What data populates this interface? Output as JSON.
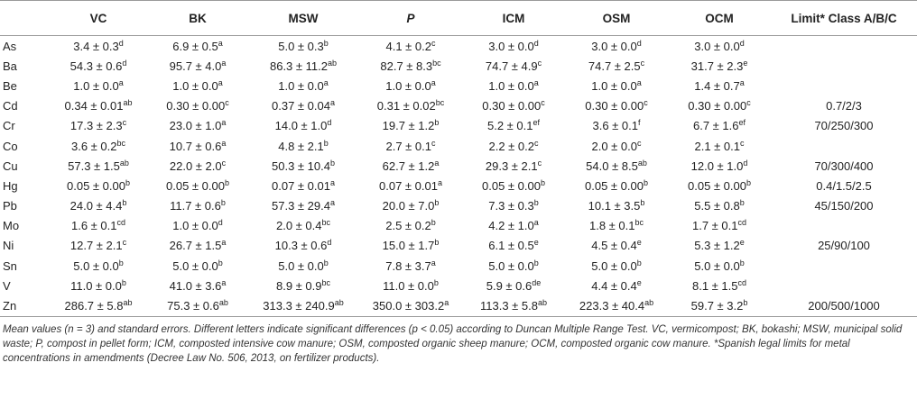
{
  "headers": [
    {
      "label": "",
      "italic": false
    },
    {
      "label": "VC",
      "italic": false
    },
    {
      "label": "BK",
      "italic": false
    },
    {
      "label": "MSW",
      "italic": false
    },
    {
      "label": "P",
      "italic": true
    },
    {
      "label": "ICM",
      "italic": false
    },
    {
      "label": "OSM",
      "italic": false
    },
    {
      "label": "OCM",
      "italic": false
    },
    {
      "label": "Limit* Class A/B/C",
      "italic": false
    }
  ],
  "rows": [
    {
      "el": "As",
      "cells": [
        [
          "3.4 ± 0.3",
          "d"
        ],
        [
          "6.9 ± 0.5",
          "a"
        ],
        [
          "5.0 ± 0.3",
          "b"
        ],
        [
          "4.1 ± 0.2",
          "c"
        ],
        [
          "3.0 ± 0.0",
          "d"
        ],
        [
          "3.0 ± 0.0",
          "d"
        ],
        [
          "3.0 ± 0.0",
          "d"
        ]
      ],
      "limit": ""
    },
    {
      "el": "Ba",
      "cells": [
        [
          "54.3 ± 0.6",
          "d"
        ],
        [
          "95.7 ± 4.0",
          "a"
        ],
        [
          "86.3 ± 11.2",
          "ab"
        ],
        [
          "82.7 ± 8.3",
          "bc"
        ],
        [
          "74.7 ± 4.9",
          "c"
        ],
        [
          "74.7 ± 2.5",
          "c"
        ],
        [
          "31.7 ± 2.3",
          "e"
        ]
      ],
      "limit": ""
    },
    {
      "el": "Be",
      "cells": [
        [
          "1.0 ± 0.0",
          "a"
        ],
        [
          "1.0 ± 0.0",
          "a"
        ],
        [
          "1.0 ± 0.0",
          "a"
        ],
        [
          "1.0 ± 0.0",
          "a"
        ],
        [
          "1.0 ± 0.0",
          "a"
        ],
        [
          "1.0 ± 0.0",
          "a"
        ],
        [
          "1.4 ± 0.7",
          "a"
        ]
      ],
      "limit": ""
    },
    {
      "el": "Cd",
      "cells": [
        [
          "0.34 ± 0.01",
          "ab"
        ],
        [
          "0.30 ± 0.00",
          "c"
        ],
        [
          "0.37 ± 0.04",
          "a"
        ],
        [
          "0.31 ± 0.02",
          "bc"
        ],
        [
          "0.30 ± 0.00",
          "c"
        ],
        [
          "0.30 ± 0.00",
          "c"
        ],
        [
          "0.30 ± 0.00",
          "c"
        ]
      ],
      "limit": "0.7/2/3"
    },
    {
      "el": "Cr",
      "cells": [
        [
          "17.3 ± 2.3",
          "c"
        ],
        [
          "23.0 ± 1.0",
          "a"
        ],
        [
          "14.0 ± 1.0",
          "d"
        ],
        [
          "19.7 ± 1.2",
          "b"
        ],
        [
          "5.2 ± 0.1",
          "ef"
        ],
        [
          "3.6 ± 0.1",
          "f"
        ],
        [
          "6.7 ± 1.6",
          "ef"
        ]
      ],
      "limit": "70/250/300"
    },
    {
      "el": "Co",
      "cells": [
        [
          "3.6 ± 0.2",
          "bc"
        ],
        [
          "10.7 ± 0.6",
          "a"
        ],
        [
          "4.8 ± 2.1",
          "b"
        ],
        [
          "2.7 ± 0.1",
          "c"
        ],
        [
          "2.2 ± 0.2",
          "c"
        ],
        [
          "2.0 ± 0.0",
          "c"
        ],
        [
          "2.1 ± 0.1",
          "c"
        ]
      ],
      "limit": ""
    },
    {
      "el": "Cu",
      "cells": [
        [
          "57.3 ± 1.5",
          "ab"
        ],
        [
          "22.0 ± 2.0",
          "c"
        ],
        [
          "50.3 ± 10.4",
          "b"
        ],
        [
          "62.7 ± 1.2",
          "a"
        ],
        [
          "29.3 ± 2.1",
          "c"
        ],
        [
          "54.0 ± 8.5",
          "ab"
        ],
        [
          "12.0 ± 1.0",
          "d"
        ]
      ],
      "limit": "70/300/400"
    },
    {
      "el": "Hg",
      "cells": [
        [
          "0.05 ± 0.00",
          "b"
        ],
        [
          "0.05 ± 0.00",
          "b"
        ],
        [
          "0.07 ± 0.01",
          "a"
        ],
        [
          "0.07 ± 0.01",
          "a"
        ],
        [
          "0.05 ± 0.00",
          "b"
        ],
        [
          "0.05 ± 0.00",
          "b"
        ],
        [
          "0.05 ± 0.00",
          "b"
        ]
      ],
      "limit": "0.4/1.5/2.5"
    },
    {
      "el": "Pb",
      "cells": [
        [
          "24.0 ± 4.4",
          "b"
        ],
        [
          "11.7 ± 0.6",
          "b"
        ],
        [
          "57.3 ± 29.4",
          "a"
        ],
        [
          "20.0 ± 7.0",
          "b"
        ],
        [
          "7.3 ± 0.3",
          "b"
        ],
        [
          "10.1 ± 3.5",
          "b"
        ],
        [
          "5.5 ± 0.8",
          "b"
        ]
      ],
      "limit": "45/150/200"
    },
    {
      "el": "Mo",
      "cells": [
        [
          "1.6 ± 0.1",
          "cd"
        ],
        [
          "1.0 ± 0.0",
          "d"
        ],
        [
          "2.0 ± 0.4",
          "bc"
        ],
        [
          "2.5 ± 0.2",
          "b"
        ],
        [
          "4.2 ± 1.0",
          "a"
        ],
        [
          "1.8 ± 0.1",
          "bc"
        ],
        [
          "1.7 ± 0.1",
          "cd"
        ]
      ],
      "limit": ""
    },
    {
      "el": "Ni",
      "cells": [
        [
          "12.7 ± 2.1",
          "c"
        ],
        [
          "26.7 ± 1.5",
          "a"
        ],
        [
          "10.3 ± 0.6",
          "d"
        ],
        [
          "15.0 ± 1.7",
          "b"
        ],
        [
          "6.1 ± 0.5",
          "e"
        ],
        [
          "4.5 ± 0.4",
          "e"
        ],
        [
          "5.3 ± 1.2",
          "e"
        ]
      ],
      "limit": "25/90/100"
    },
    {
      "el": "Sn",
      "cells": [
        [
          "5.0 ± 0.0",
          "b"
        ],
        [
          "5.0 ± 0.0",
          "b"
        ],
        [
          "5.0 ± 0.0",
          "b"
        ],
        [
          "7.8 ± 3.7",
          "a"
        ],
        [
          "5.0 ± 0.0",
          "b"
        ],
        [
          "5.0 ± 0.0",
          "b"
        ],
        [
          "5.0 ± 0.0",
          "b"
        ]
      ],
      "limit": ""
    },
    {
      "el": "V",
      "cells": [
        [
          "11.0 ± 0.0",
          "b"
        ],
        [
          "41.0 ± 3.6",
          "a"
        ],
        [
          "8.9 ± 0.9",
          "bc"
        ],
        [
          "11.0 ± 0.0",
          "b"
        ],
        [
          "5.9 ± 0.6",
          "de"
        ],
        [
          "4.4 ± 0.4",
          "e"
        ],
        [
          "8.1 ± 1.5",
          "cd"
        ]
      ],
      "limit": ""
    },
    {
      "el": "Zn",
      "cells": [
        [
          "286.7 ± 5.8",
          "ab"
        ],
        [
          "75.3 ± 0.6",
          "ab"
        ],
        [
          "313.3 ± 240.9",
          "ab"
        ],
        [
          "350.0 ± 303.2",
          "a"
        ],
        [
          "113.3 ± 5.8",
          "ab"
        ],
        [
          "223.3 ± 40.4",
          "ab"
        ],
        [
          "59.7 ± 3.2",
          "b"
        ]
      ],
      "limit": "200/500/1000"
    }
  ],
  "footnote": "Mean values (n = 3) and standard errors. Different letters indicate significant differences (p < 0.05) according to Duncan Multiple Range Test. VC, vermicompost; BK, bokashi; MSW, municipal solid waste; P, compost in pellet form; ICM, composted intensive cow manure; OSM, composted organic sheep manure; OCM, composted organic cow manure. *Spanish legal limits for metal concentrations in amendments (Decree Law No. 506, 2013, on fertilizer products)."
}
